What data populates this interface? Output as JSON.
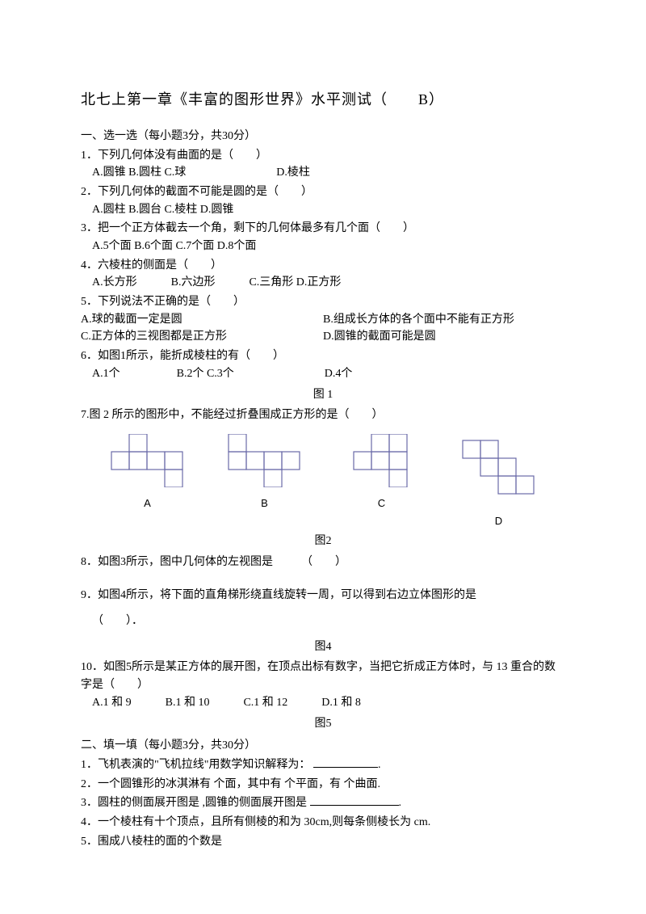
{
  "title": "北七上第一章《丰富的图形世界》水平测试（　　B）",
  "section1_head": "一、选一选（每小题3分，共30分）",
  "q1": "1．下列几何体没有曲面的是（　　）",
  "q1_opts": "A.圆锥  B.圆柱  C.球　　　　　　　　D.棱柱",
  "q2": "2．下列几何体的截面不可能是圆的是（　　）",
  "q2_opts": "A.圆柱  B.圆台  C.棱柱  D.圆锥",
  "q3": "3．把一个正方体截去一个角，剩下的几何体最多有几个面（　　）",
  "q3_opts": "A.5个面  B.6个面  C.7个面  D.8个面",
  "q4": "4．六棱柱的侧面是（　　）",
  "q4_opts": "A.长方形　　　B.六边形　　　C.三角形  D.正方形",
  "q5": "5．下列说法不正确的是（　　）",
  "q5a": "A.球的截面一定是圆",
  "q5b": "B.组成长方体的各个面中不能有正方形",
  "q5c": "C.正方体的三视图都是正方形",
  "q5d": "D.圆锥的截面可能是圆",
  "q6": "6．如图1所示，能折成棱柱的有（　　）",
  "q6_opts": "A.1个　　　　　B.2个  C.3个　　　　　　　　D.4个",
  "fig1": "图 1",
  "q7": "7.图 2 所示的图形中，不能经过折叠围成正方形的是（　　）",
  "net_labels": {
    "a": "A",
    "b": "B",
    "c": "C",
    "d": "D"
  },
  "fig2": "图2",
  "q8": "8．如图3所示，图中几何体的左视图是　　　（　　）",
  "q9": "9．如图4所示，将下面的直角梯形绕直线旋转一周，可以得到右边立体图形的是",
  "q9_paren": "（　　）．",
  "fig4": "图4",
  "q10": "10．如图5所示是某正方体的展开图，在顶点出标有数字，当把它折成正方体时，与 13 重合的数字是（　　）",
  "q10_opts": "A.1 和 9　　　B.1 和 10　　　C.1 和 12　　　D.1 和 8",
  "fig5": "图5",
  "section2_head": "二、填一填（每小题3分，共30分）",
  "f1": "1．飞机表演的\"飞机拉线\"用数学知识解释为：",
  "f2": "2．一个圆锥形的冰淇淋有  个面，其中有  个平面，有  个曲面.",
  "f3": "3．圆柱的侧面展开图是  ,圆锥的侧面展开图是",
  "f4": "4．一个棱柱有十个顶点，且所有侧棱的和为 30cm,则每条侧棱长为  cm.",
  "f5": "5．围成八棱柱的面的个数是",
  "style": {
    "net_stroke": "#6a6aa8",
    "net_stroke_width": 1.2,
    "cell": 22
  }
}
